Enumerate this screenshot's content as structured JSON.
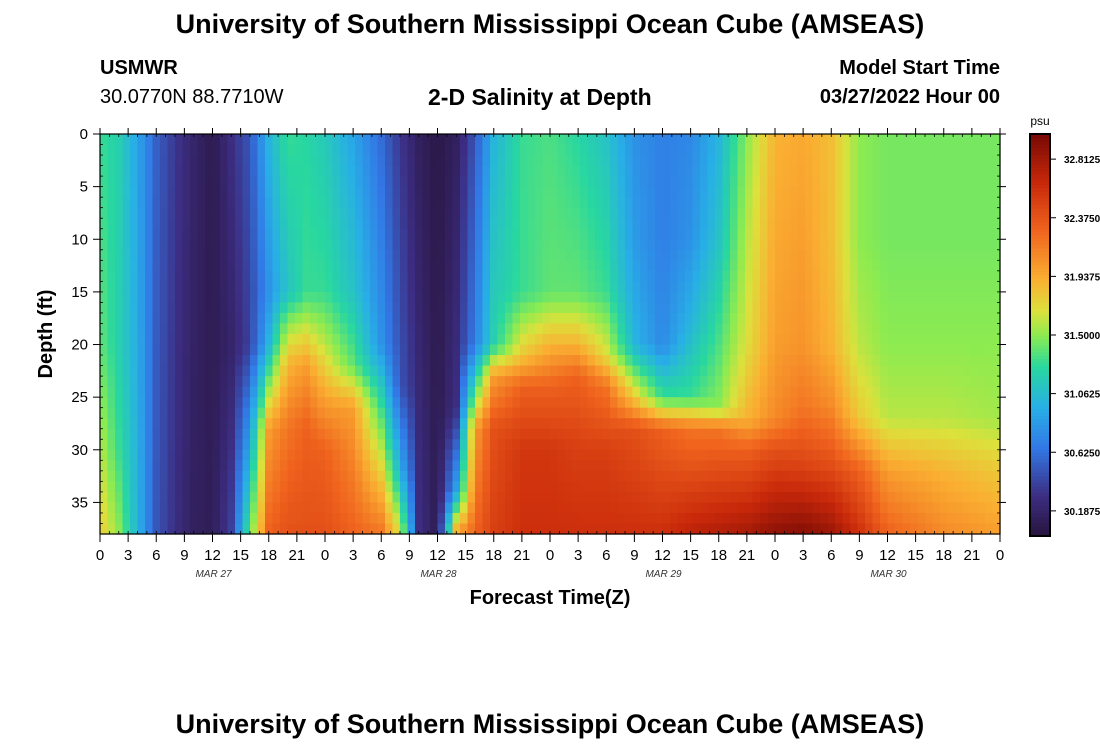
{
  "chart_data": {
    "type": "heatmap",
    "title": "University of Southern Mississippi Ocean Cube (AMSEAS)",
    "subtitle": "2-D Salinity at Depth",
    "station": "USMWR",
    "location": "30.0770N  88.7710W",
    "model_start_label": "Model Start Time",
    "model_start_value": "03/27/2022 Hour 00",
    "xlabel": "Forecast Time(Z)",
    "ylabel": "Depth (ft)",
    "x_range_hours": [
      0,
      96
    ],
    "x_ticks_hours": [
      0,
      3,
      6,
      9,
      12,
      15,
      18,
      21,
      24,
      27,
      30,
      33,
      36,
      39,
      42,
      45,
      48,
      51,
      54,
      57,
      60,
      63,
      66,
      69,
      72,
      75,
      78,
      81,
      84,
      87,
      90,
      93,
      96
    ],
    "x_tick_labels": [
      "0",
      "3",
      "6",
      "9",
      "12",
      "15",
      "18",
      "21",
      "0",
      "3",
      "6",
      "9",
      "12",
      "15",
      "18",
      "21",
      "0",
      "3",
      "6",
      "9",
      "12",
      "15",
      "18",
      "21",
      "0",
      "3",
      "6",
      "9",
      "12",
      "15",
      "18",
      "21",
      "0"
    ],
    "date_labels": [
      {
        "hour": 12,
        "label": "MAR 27"
      },
      {
        "hour": 36,
        "label": "MAR 28"
      },
      {
        "hour": 60,
        "label": "MAR 29"
      },
      {
        "hour": 84,
        "label": "MAR 30"
      }
    ],
    "y_range_ft": [
      0,
      38
    ],
    "y_ticks_ft": [
      0,
      5,
      10,
      15,
      20,
      25,
      30,
      35
    ],
    "y_tick_labels": [
      "0",
      "5",
      "10",
      "15",
      "20",
      "25",
      "30",
      "35"
    ],
    "colorbar": {
      "unit": "psu",
      "range": [
        30.0,
        33.0
      ],
      "tick_values": [
        32.8125,
        32.375,
        31.9375,
        31.5,
        31.0625,
        30.625,
        30.1875
      ],
      "tick_labels": [
        "32.8125",
        "32.3750",
        "31.9375",
        "31.5000",
        "31.0625",
        "30.6250",
        "30.1875"
      ]
    },
    "salinity_profiles": [
      {
        "hour": 0,
        "depth_ft": [
          0,
          20,
          30,
          38
        ],
        "psu": [
          31.3,
          31.4,
          31.6,
          31.8
        ]
      },
      {
        "hour": 2,
        "depth_ft": [
          0,
          20,
          30,
          38
        ],
        "psu": [
          31.2,
          31.2,
          31.3,
          31.5
        ]
      },
      {
        "hour": 4,
        "depth_ft": [
          0,
          38
        ],
        "psu": [
          30.9,
          31.0
        ]
      },
      {
        "hour": 6,
        "depth_ft": [
          0,
          38
        ],
        "psu": [
          30.55,
          30.5
        ]
      },
      {
        "hour": 8,
        "depth_ft": [
          0,
          38
        ],
        "psu": [
          30.35,
          30.3
        ]
      },
      {
        "hour": 10,
        "depth_ft": [
          0,
          38
        ],
        "psu": [
          30.2,
          30.15
        ]
      },
      {
        "hour": 12,
        "depth_ft": [
          0,
          38
        ],
        "psu": [
          30.08,
          30.12
        ]
      },
      {
        "hour": 14,
        "depth_ft": [
          0,
          20,
          38
        ],
        "psu": [
          30.3,
          30.2,
          30.4
        ]
      },
      {
        "hour": 16,
        "depth_ft": [
          0,
          20,
          38
        ],
        "psu": [
          30.5,
          30.4,
          31.4
        ]
      },
      {
        "hour": 18,
        "depth_ft": [
          0,
          15,
          20,
          28,
          38
        ],
        "psu": [
          31.0,
          30.8,
          31.0,
          32.0,
          32.3
        ]
      },
      {
        "hour": 20,
        "depth_ft": [
          0,
          15,
          18,
          22,
          28,
          38
        ],
        "psu": [
          31.3,
          31.1,
          31.5,
          31.9,
          32.2,
          32.4
        ]
      },
      {
        "hour": 22,
        "depth_ft": [
          0,
          15,
          19,
          22,
          28,
          38
        ],
        "psu": [
          31.25,
          31.3,
          31.7,
          32.0,
          32.3,
          32.4
        ]
      },
      {
        "hour": 24,
        "depth_ft": [
          0,
          15,
          20,
          24,
          30,
          38
        ],
        "psu": [
          31.15,
          31.3,
          31.6,
          31.9,
          32.3,
          32.4
        ]
      },
      {
        "hour": 27,
        "depth_ft": [
          0,
          15,
          22,
          26,
          38
        ],
        "psu": [
          30.9,
          31.1,
          31.4,
          32.0,
          32.3
        ]
      },
      {
        "hour": 30,
        "depth_ft": [
          0,
          20,
          26,
          38
        ],
        "psu": [
          30.6,
          30.8,
          31.3,
          32.2
        ]
      },
      {
        "hour": 32,
        "depth_ft": [
          0,
          24,
          32,
          38
        ],
        "psu": [
          30.35,
          30.5,
          31.0,
          31.7
        ]
      },
      {
        "hour": 34,
        "depth_ft": [
          0,
          38
        ],
        "psu": [
          30.15,
          30.3
        ]
      },
      {
        "hour": 36,
        "depth_ft": [
          0,
          38
        ],
        "psu": [
          30.05,
          30.1
        ]
      },
      {
        "hour": 38,
        "depth_ft": [
          0,
          26,
          34,
          38
        ],
        "psu": [
          30.15,
          30.3,
          30.9,
          32.0
        ]
      },
      {
        "hour": 40,
        "depth_ft": [
          0,
          20,
          24,
          28,
          38
        ],
        "psu": [
          30.5,
          30.7,
          31.3,
          32.0,
          32.3
        ]
      },
      {
        "hour": 42,
        "depth_ft": [
          0,
          20,
          23,
          28,
          38
        ],
        "psu": [
          31.0,
          31.2,
          32.0,
          32.4,
          32.5
        ]
      },
      {
        "hour": 45,
        "depth_ft": [
          0,
          15,
          21,
          24,
          30,
          38
        ],
        "psu": [
          31.3,
          31.3,
          31.8,
          32.3,
          32.55,
          32.6
        ]
      },
      {
        "hour": 48,
        "depth_ft": [
          0,
          15,
          20,
          24,
          30,
          38
        ],
        "psu": [
          31.35,
          31.4,
          31.9,
          32.3,
          32.55,
          32.6
        ]
      },
      {
        "hour": 51,
        "depth_ft": [
          0,
          15,
          20,
          23,
          30,
          38
        ],
        "psu": [
          31.25,
          31.4,
          31.9,
          32.3,
          32.5,
          32.6
        ]
      },
      {
        "hour": 54,
        "depth_ft": [
          0,
          15,
          21,
          24,
          30,
          38
        ],
        "psu": [
          31.1,
          31.3,
          31.7,
          32.2,
          32.5,
          32.6
        ]
      },
      {
        "hour": 57,
        "depth_ft": [
          0,
          10,
          20,
          25,
          28,
          38
        ],
        "psu": [
          30.8,
          30.85,
          31.0,
          31.8,
          32.4,
          32.6
        ]
      },
      {
        "hour": 60,
        "depth_ft": [
          0,
          10,
          20,
          25,
          28,
          38
        ],
        "psu": [
          30.7,
          30.7,
          30.75,
          31.3,
          32.3,
          32.6
        ]
      },
      {
        "hour": 63,
        "depth_ft": [
          0,
          10,
          18,
          25,
          28,
          38
        ],
        "psu": [
          30.75,
          30.8,
          31.0,
          31.3,
          32.2,
          32.7
        ]
      },
      {
        "hour": 66,
        "depth_ft": [
          0,
          10,
          20,
          26,
          28,
          38
        ],
        "psu": [
          31.0,
          31.1,
          31.35,
          31.5,
          32.2,
          32.75
        ]
      },
      {
        "hour": 69,
        "depth_ft": [
          0,
          10,
          20,
          27,
          30,
          38
        ],
        "psu": [
          31.5,
          31.6,
          31.7,
          31.9,
          32.3,
          32.8
        ]
      },
      {
        "hour": 72,
        "depth_ft": [
          0,
          10,
          20,
          27,
          30,
          38
        ],
        "psu": [
          31.9,
          31.95,
          32.0,
          32.1,
          32.4,
          32.9
        ]
      },
      {
        "hour": 75,
        "depth_ft": [
          0,
          10,
          20,
          26,
          32,
          38
        ],
        "psu": [
          31.95,
          32.0,
          32.05,
          32.2,
          32.5,
          32.95
        ]
      },
      {
        "hour": 78,
        "depth_ft": [
          0,
          10,
          20,
          26,
          32,
          38
        ],
        "psu": [
          31.85,
          31.85,
          31.9,
          32.1,
          32.45,
          32.85
        ]
      },
      {
        "hour": 81,
        "depth_ft": [
          0,
          10,
          20,
          27,
          32,
          38
        ],
        "psu": [
          31.5,
          31.5,
          31.6,
          31.8,
          32.3,
          32.6
        ]
      },
      {
        "hour": 84,
        "depth_ft": [
          0,
          10,
          20,
          27,
          32,
          38
        ],
        "psu": [
          31.45,
          31.45,
          31.5,
          31.6,
          32.0,
          32.3
        ]
      },
      {
        "hour": 90,
        "depth_ft": [
          0,
          10,
          20,
          27,
          32,
          38
        ],
        "psu": [
          31.45,
          31.45,
          31.5,
          31.6,
          31.9,
          32.1
        ]
      },
      {
        "hour": 96,
        "depth_ft": [
          0,
          10,
          20,
          27,
          32,
          38
        ],
        "psu": [
          31.45,
          31.45,
          31.5,
          31.55,
          31.8,
          32.0
        ]
      }
    ]
  },
  "footer_title": "University of Southern Mississippi Ocean Cube (AMSEAS)"
}
